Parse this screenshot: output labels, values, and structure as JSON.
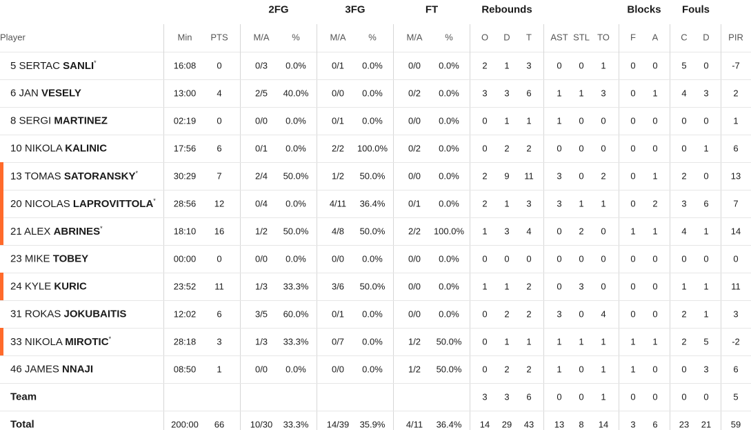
{
  "header": {
    "groups": [
      "2FG",
      "3FG",
      "FT",
      "Rebounds",
      "Blocks",
      "Fouls"
    ],
    "columns": [
      "Player",
      "Min",
      "PTS",
      "M/A",
      "%",
      "M/A",
      "%",
      "M/A",
      "%",
      "O",
      "D",
      "T",
      "AST",
      "STL",
      "TO",
      "F",
      "A",
      "C",
      "D",
      "PIR"
    ]
  },
  "rows": [
    {
      "player": {
        "no": "5",
        "first": "SERTAC",
        "last": "SANLI",
        "mark": "*"
      },
      "highlight": false,
      "cells": [
        "16:08",
        "0",
        "0/3",
        "0.0%",
        "0/1",
        "0.0%",
        "0/0",
        "0.0%",
        "2",
        "1",
        "3",
        "0",
        "0",
        "1",
        "0",
        "0",
        "5",
        "0",
        "-7"
      ]
    },
    {
      "player": {
        "no": "6",
        "first": "JAN",
        "last": "VESELY"
      },
      "highlight": false,
      "cells": [
        "13:00",
        "4",
        "2/5",
        "40.0%",
        "0/0",
        "0.0%",
        "0/2",
        "0.0%",
        "3",
        "3",
        "6",
        "1",
        "1",
        "3",
        "0",
        "1",
        "4",
        "3",
        "2"
      ]
    },
    {
      "player": {
        "no": "8",
        "first": "SERGI",
        "last": "MARTINEZ"
      },
      "highlight": false,
      "cells": [
        "02:19",
        "0",
        "0/0",
        "0.0%",
        "0/1",
        "0.0%",
        "0/0",
        "0.0%",
        "0",
        "1",
        "1",
        "1",
        "0",
        "0",
        "0",
        "0",
        "0",
        "0",
        "1"
      ]
    },
    {
      "player": {
        "no": "10",
        "first": "NIKOLA",
        "last": "KALINIC"
      },
      "highlight": false,
      "cells": [
        "17:56",
        "6",
        "0/1",
        "0.0%",
        "2/2",
        "100.0%",
        "0/2",
        "0.0%",
        "0",
        "2",
        "2",
        "0",
        "0",
        "0",
        "0",
        "0",
        "0",
        "1",
        "6"
      ]
    },
    {
      "player": {
        "no": "13",
        "first": "TOMAS",
        "last": "SATORANSKY",
        "mark": "*"
      },
      "highlight": true,
      "cells": [
        "30:29",
        "7",
        "2/4",
        "50.0%",
        "1/2",
        "50.0%",
        "0/0",
        "0.0%",
        "2",
        "9",
        "11",
        "3",
        "0",
        "2",
        "0",
        "1",
        "2",
        "0",
        "13"
      ]
    },
    {
      "player": {
        "no": "20",
        "first": "NICOLAS",
        "last": "LAPROVITTOLA",
        "mark": "*"
      },
      "highlight": true,
      "cells": [
        "28:56",
        "12",
        "0/4",
        "0.0%",
        "4/11",
        "36.4%",
        "0/1",
        "0.0%",
        "2",
        "1",
        "3",
        "3",
        "1",
        "1",
        "0",
        "2",
        "3",
        "6",
        "7"
      ]
    },
    {
      "player": {
        "no": "21",
        "first": "ALEX",
        "last": "ABRINES",
        "mark": "*"
      },
      "highlight": true,
      "cells": [
        "18:10",
        "16",
        "1/2",
        "50.0%",
        "4/8",
        "50.0%",
        "2/2",
        "100.0%",
        "1",
        "3",
        "4",
        "0",
        "2",
        "0",
        "1",
        "1",
        "4",
        "1",
        "14"
      ]
    },
    {
      "player": {
        "no": "23",
        "first": "MIKE",
        "last": "TOBEY"
      },
      "highlight": false,
      "cells": [
        "00:00",
        "0",
        "0/0",
        "0.0%",
        "0/0",
        "0.0%",
        "0/0",
        "0.0%",
        "0",
        "0",
        "0",
        "0",
        "0",
        "0",
        "0",
        "0",
        "0",
        "0",
        "0"
      ]
    },
    {
      "player": {
        "no": "24",
        "first": "KYLE",
        "last": "KURIC"
      },
      "highlight": true,
      "cells": [
        "23:52",
        "11",
        "1/3",
        "33.3%",
        "3/6",
        "50.0%",
        "0/0",
        "0.0%",
        "1",
        "1",
        "2",
        "0",
        "3",
        "0",
        "0",
        "0",
        "1",
        "1",
        "11"
      ]
    },
    {
      "player": {
        "no": "31",
        "first": "ROKAS",
        "last": "JOKUBAITIS"
      },
      "highlight": false,
      "cells": [
        "12:02",
        "6",
        "3/5",
        "60.0%",
        "0/1",
        "0.0%",
        "0/0",
        "0.0%",
        "0",
        "2",
        "2",
        "3",
        "0",
        "4",
        "0",
        "0",
        "2",
        "1",
        "3"
      ]
    },
    {
      "player": {
        "no": "33",
        "first": "NIKOLA",
        "last": "MIROTIC",
        "mark": "*"
      },
      "highlight": true,
      "cells": [
        "28:18",
        "3",
        "1/3",
        "33.3%",
        "0/7",
        "0.0%",
        "1/2",
        "50.0%",
        "0",
        "1",
        "1",
        "1",
        "1",
        "1",
        "1",
        "1",
        "2",
        "5",
        "-2"
      ]
    },
    {
      "player": {
        "no": "46",
        "first": "JAMES",
        "last": "NNAJI"
      },
      "highlight": false,
      "cells": [
        "08:50",
        "1",
        "0/0",
        "0.0%",
        "0/0",
        "0.0%",
        "1/2",
        "50.0%",
        "0",
        "2",
        "2",
        "1",
        "0",
        "1",
        "1",
        "0",
        "0",
        "3",
        "6"
      ]
    },
    {
      "label": "Team",
      "cells": [
        null,
        null,
        null,
        null,
        null,
        null,
        null,
        null,
        "3",
        "3",
        "6",
        "0",
        "0",
        "1",
        "0",
        "0",
        "0",
        "0",
        "5"
      ]
    },
    {
      "label": "Total",
      "cells": [
        "200:00",
        "66",
        "10/30",
        "33.3%",
        "14/39",
        "35.9%",
        "4/11",
        "36.4%",
        "14",
        "29",
        "43",
        "13",
        "8",
        "14",
        "3",
        "6",
        "23",
        "21",
        "59"
      ]
    }
  ]
}
